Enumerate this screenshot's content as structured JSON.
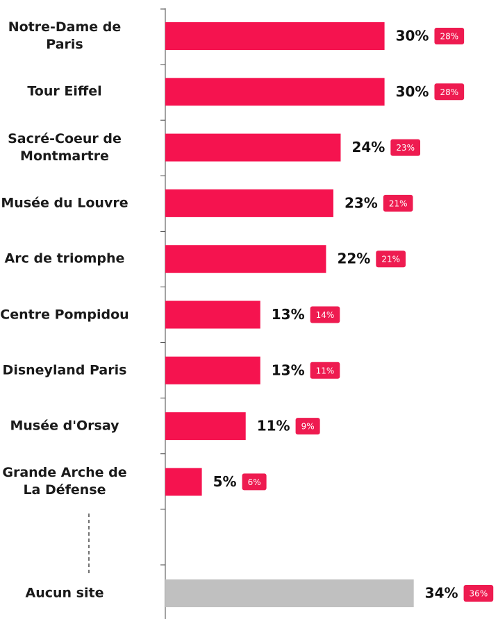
{
  "chart_data": {
    "type": "bar",
    "categories": [
      "Notre-Dame de\nParis",
      "Tour Eiffel",
      "Sacré-Coeur de\nMontmartre",
      "Musée du Louvre",
      "Arc de triomphe",
      "Centre Pompidou",
      "Disneyland Paris",
      "Musée d'Orsay",
      "Grande Arche de\nLa Défense",
      "Aucun site"
    ],
    "series": [
      {
        "values": [
          30,
          30,
          24,
          23,
          22,
          13,
          13,
          11,
          5,
          34
        ],
        "value_labels": [
          "30%",
          "30%",
          "24%",
          "23%",
          "22%",
          "13%",
          "13%",
          "11%",
          "5%",
          "34%"
        ],
        "colors": [
          "#f5134f",
          "#f5134f",
          "#f5134f",
          "#f5134f",
          "#f5134f",
          "#f5134f",
          "#f5134f",
          "#f5134f",
          "#f5134f",
          "#c0c0c0"
        ]
      },
      {
        "values": [
          28,
          28,
          23,
          21,
          21,
          14,
          11,
          9,
          6,
          36
        ],
        "value_labels": [
          "28%",
          "28%",
          "23%",
          "21%",
          "21%",
          "14%",
          "11%",
          "9%",
          "6%",
          "36%"
        ],
        "color": "#ee1b50"
      }
    ]
  }
}
